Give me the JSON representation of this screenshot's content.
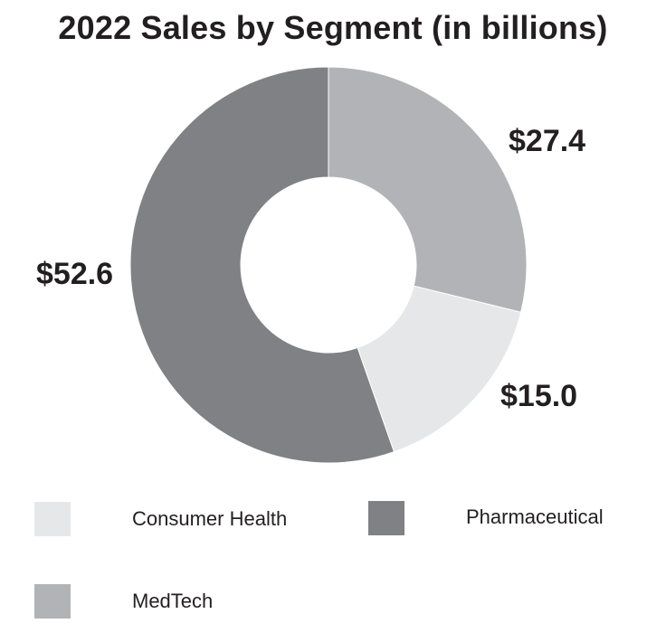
{
  "chart_data": {
    "type": "pie",
    "title": "2022 Sales by Segment (in billions)",
    "donut": true,
    "slices": [
      {
        "name": "MedTech",
        "value": 27.4,
        "label": "$27.4",
        "color": "#b2b3b6"
      },
      {
        "name": "Consumer Health",
        "value": 15.0,
        "label": "$15.0",
        "color": "#e6e7e8"
      },
      {
        "name": "Pharmaceutical",
        "value": 52.6,
        "label": "$52.6",
        "color": "#808184"
      }
    ],
    "legend": {
      "placement": "bottom",
      "entries": [
        "Consumer Health",
        "Pharmaceutical",
        "MedTech"
      ]
    }
  }
}
